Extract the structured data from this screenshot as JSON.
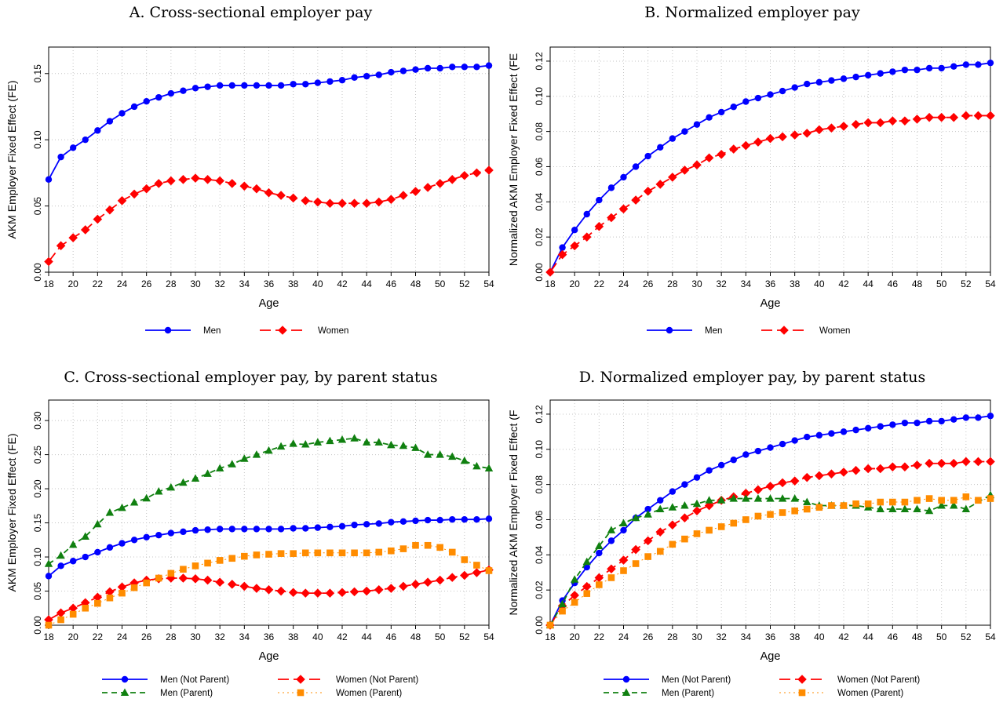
{
  "colors": {
    "men": "#0000ff",
    "women": "#ff0000",
    "men_parent": "#108010",
    "women_parent": "#ff8c00"
  },
  "chart_data": [
    {
      "type": "line",
      "title": "A. Cross-sectional employer pay",
      "xlabel": "Age",
      "ylabel": "AKM Employer Fixed Effect (FE)",
      "xlim": [
        18,
        54
      ],
      "ylim": [
        0,
        0.17
      ],
      "yticks": [
        0.0,
        0.05,
        0.1,
        0.15
      ],
      "ytick_labels": [
        "0.00",
        "0.05",
        "0.10",
        "0.15"
      ],
      "grid": true,
      "legend": "bottom",
      "x": [
        18,
        19,
        20,
        21,
        22,
        23,
        24,
        25,
        26,
        27,
        28,
        29,
        30,
        31,
        32,
        33,
        34,
        35,
        36,
        37,
        38,
        39,
        40,
        41,
        42,
        43,
        44,
        45,
        46,
        47,
        48,
        49,
        50,
        51,
        52,
        53,
        54
      ],
      "series": [
        {
          "name": "Men",
          "color_key": "men",
          "marker": "circle",
          "dash": "solid",
          "values": [
            0.07,
            0.087,
            0.094,
            0.1,
            0.107,
            0.114,
            0.12,
            0.125,
            0.129,
            0.132,
            0.135,
            0.137,
            0.139,
            0.14,
            0.141,
            0.141,
            0.141,
            0.141,
            0.141,
            0.141,
            0.142,
            0.142,
            0.143,
            0.144,
            0.145,
            0.147,
            0.148,
            0.149,
            0.151,
            0.152,
            0.153,
            0.154,
            0.154,
            0.155,
            0.155,
            0.155,
            0.156
          ]
        },
        {
          "name": "Women",
          "color_key": "women",
          "marker": "diamond",
          "dash": "long",
          "values": [
            0.008,
            0.02,
            0.026,
            0.032,
            0.04,
            0.047,
            0.054,
            0.059,
            0.063,
            0.067,
            0.069,
            0.07,
            0.071,
            0.07,
            0.069,
            0.067,
            0.065,
            0.063,
            0.06,
            0.058,
            0.056,
            0.054,
            0.053,
            0.052,
            0.052,
            0.052,
            0.052,
            0.053,
            0.055,
            0.058,
            0.061,
            0.064,
            0.067,
            0.07,
            0.073,
            0.075,
            0.077
          ]
        }
      ]
    },
    {
      "type": "line",
      "title": "B. Normalized employer pay",
      "xlabel": "Age",
      "ylabel": "Normalized AKM Employer Fixed Effect (FE",
      "xlim": [
        18,
        54
      ],
      "ylim": [
        0,
        0.128
      ],
      "yticks": [
        0.0,
        0.02,
        0.04,
        0.06,
        0.08,
        0.1,
        0.12
      ],
      "ytick_labels": [
        "0.00",
        "0.02",
        "0.04",
        "0.06",
        "0.08",
        "0.10",
        "0.12"
      ],
      "grid": true,
      "legend": "bottom",
      "x": [
        18,
        19,
        20,
        21,
        22,
        23,
        24,
        25,
        26,
        27,
        28,
        29,
        30,
        31,
        32,
        33,
        34,
        35,
        36,
        37,
        38,
        39,
        40,
        41,
        42,
        43,
        44,
        45,
        46,
        47,
        48,
        49,
        50,
        51,
        52,
        53,
        54
      ],
      "series": [
        {
          "name": "Men",
          "color_key": "men",
          "marker": "circle",
          "dash": "solid",
          "values": [
            0.0,
            0.014,
            0.024,
            0.033,
            0.041,
            0.048,
            0.054,
            0.06,
            0.066,
            0.071,
            0.076,
            0.08,
            0.084,
            0.088,
            0.091,
            0.094,
            0.097,
            0.099,
            0.101,
            0.103,
            0.105,
            0.107,
            0.108,
            0.109,
            0.11,
            0.111,
            0.112,
            0.113,
            0.114,
            0.115,
            0.115,
            0.116,
            0.116,
            0.117,
            0.118,
            0.118,
            0.119
          ]
        },
        {
          "name": "Women",
          "color_key": "women",
          "marker": "diamond",
          "dash": "long",
          "values": [
            0.0,
            0.01,
            0.015,
            0.02,
            0.026,
            0.031,
            0.036,
            0.041,
            0.046,
            0.05,
            0.054,
            0.058,
            0.061,
            0.065,
            0.067,
            0.07,
            0.072,
            0.074,
            0.076,
            0.077,
            0.078,
            0.079,
            0.081,
            0.082,
            0.083,
            0.084,
            0.085,
            0.085,
            0.086,
            0.086,
            0.087,
            0.088,
            0.088,
            0.088,
            0.089,
            0.089,
            0.089
          ]
        }
      ]
    },
    {
      "type": "line",
      "title": "C. Cross-sectional employer pay, by parent status",
      "xlabel": "Age",
      "ylabel": "AKM Employer Fixed Effect (FE)",
      "xlim": [
        18,
        54
      ],
      "ylim": [
        0,
        0.33
      ],
      "yticks": [
        0.0,
        0.05,
        0.1,
        0.15,
        0.2,
        0.25,
        0.3
      ],
      "ytick_labels": [
        "0.00",
        "0.05",
        "0.10",
        "0.15",
        "0.20",
        "0.25",
        "0.30"
      ],
      "grid": true,
      "legend": "bottom",
      "x": [
        18,
        19,
        20,
        21,
        22,
        23,
        24,
        25,
        26,
        27,
        28,
        29,
        30,
        31,
        32,
        33,
        34,
        35,
        36,
        37,
        38,
        39,
        40,
        41,
        42,
        43,
        44,
        45,
        46,
        47,
        48,
        49,
        50,
        51,
        52,
        53,
        54
      ],
      "series": [
        {
          "name": "Men (Not Parent)",
          "color_key": "men",
          "marker": "circle",
          "dash": "solid",
          "values": [
            0.072,
            0.087,
            0.094,
            0.1,
            0.107,
            0.114,
            0.12,
            0.125,
            0.129,
            0.132,
            0.135,
            0.137,
            0.139,
            0.14,
            0.141,
            0.141,
            0.141,
            0.141,
            0.141,
            0.141,
            0.142,
            0.142,
            0.143,
            0.144,
            0.145,
            0.147,
            0.148,
            0.149,
            0.151,
            0.152,
            0.153,
            0.154,
            0.154,
            0.155,
            0.155,
            0.155,
            0.156
          ]
        },
        {
          "name": "Women (Not Parent)",
          "color_key": "women",
          "marker": "diamond",
          "dash": "long",
          "values": [
            0.008,
            0.018,
            0.025,
            0.033,
            0.041,
            0.049,
            0.056,
            0.062,
            0.066,
            0.068,
            0.069,
            0.069,
            0.068,
            0.066,
            0.063,
            0.06,
            0.057,
            0.054,
            0.052,
            0.05,
            0.048,
            0.047,
            0.047,
            0.047,
            0.048,
            0.049,
            0.05,
            0.052,
            0.054,
            0.057,
            0.06,
            0.063,
            0.066,
            0.07,
            0.073,
            0.077,
            0.081
          ]
        },
        {
          "name": "Men (Parent)",
          "color_key": "men_parent",
          "marker": "triangle",
          "dash": "dash",
          "values": [
            0.09,
            0.102,
            0.118,
            0.13,
            0.148,
            0.165,
            0.172,
            0.18,
            0.186,
            0.196,
            0.202,
            0.209,
            0.215,
            0.222,
            0.23,
            0.236,
            0.244,
            0.25,
            0.256,
            0.262,
            0.266,
            0.265,
            0.268,
            0.27,
            0.272,
            0.274,
            0.268,
            0.268,
            0.264,
            0.263,
            0.26,
            0.25,
            0.25,
            0.247,
            0.241,
            0.233,
            0.23
          ]
        },
        {
          "name": "Women (Parent)",
          "color_key": "women_parent",
          "marker": "square",
          "dash": "dot",
          "values": [
            0.0,
            0.008,
            0.016,
            0.025,
            0.032,
            0.04,
            0.047,
            0.055,
            0.062,
            0.069,
            0.076,
            0.082,
            0.087,
            0.091,
            0.095,
            0.098,
            0.101,
            0.103,
            0.104,
            0.105,
            0.105,
            0.106,
            0.106,
            0.106,
            0.106,
            0.106,
            0.106,
            0.107,
            0.109,
            0.112,
            0.117,
            0.117,
            0.114,
            0.107,
            0.096,
            0.088,
            0.08
          ]
        }
      ]
    },
    {
      "type": "line",
      "title": "D. Normalized employer pay, by parent status",
      "xlabel": "Age",
      "ylabel": "Normalized AKM Employer Fixed Effect (F",
      "xlim": [
        18,
        54
      ],
      "ylim": [
        0,
        0.128
      ],
      "yticks": [
        0.0,
        0.02,
        0.04,
        0.06,
        0.08,
        0.1,
        0.12
      ],
      "ytick_labels": [
        "0.00",
        "0.02",
        "0.04",
        "0.06",
        "0.08",
        "0.10",
        "0.12"
      ],
      "grid": true,
      "legend": "bottom",
      "x": [
        18,
        19,
        20,
        21,
        22,
        23,
        24,
        25,
        26,
        27,
        28,
        29,
        30,
        31,
        32,
        33,
        34,
        35,
        36,
        37,
        38,
        39,
        40,
        41,
        42,
        43,
        44,
        45,
        46,
        47,
        48,
        49,
        50,
        51,
        52,
        53,
        54
      ],
      "series": [
        {
          "name": "Men (Not Parent)",
          "color_key": "men",
          "marker": "circle",
          "dash": "solid",
          "values": [
            0.0,
            0.014,
            0.024,
            0.033,
            0.041,
            0.048,
            0.054,
            0.061,
            0.066,
            0.071,
            0.076,
            0.08,
            0.084,
            0.088,
            0.091,
            0.094,
            0.097,
            0.099,
            0.101,
            0.103,
            0.105,
            0.107,
            0.108,
            0.109,
            0.11,
            0.111,
            0.112,
            0.113,
            0.114,
            0.115,
            0.115,
            0.116,
            0.116,
            0.117,
            0.118,
            0.118,
            0.119
          ]
        },
        {
          "name": "Women (Not Parent)",
          "color_key": "women",
          "marker": "diamond",
          "dash": "long",
          "values": [
            0.0,
            0.011,
            0.017,
            0.022,
            0.027,
            0.032,
            0.037,
            0.043,
            0.048,
            0.053,
            0.057,
            0.061,
            0.065,
            0.068,
            0.071,
            0.073,
            0.075,
            0.077,
            0.079,
            0.081,
            0.082,
            0.084,
            0.085,
            0.086,
            0.087,
            0.088,
            0.089,
            0.089,
            0.09,
            0.09,
            0.091,
            0.092,
            0.092,
            0.092,
            0.093,
            0.093,
            0.093
          ]
        },
        {
          "name": "Men (Parent)",
          "color_key": "men_parent",
          "marker": "triangle",
          "dash": "dash",
          "values": [
            0.0,
            0.012,
            0.026,
            0.036,
            0.045,
            0.054,
            0.058,
            0.061,
            0.063,
            0.066,
            0.067,
            0.068,
            0.069,
            0.071,
            0.071,
            0.072,
            0.072,
            0.072,
            0.072,
            0.072,
            0.072,
            0.07,
            0.068,
            0.068,
            0.068,
            0.068,
            0.067,
            0.066,
            0.066,
            0.066,
            0.066,
            0.065,
            0.068,
            0.068,
            0.066,
            null,
            0.074
          ]
        },
        {
          "name": "Women (Parent)",
          "color_key": "women_parent",
          "marker": "square",
          "dash": "dot",
          "values": [
            0.0,
            0.008,
            0.013,
            0.018,
            0.023,
            0.027,
            0.031,
            0.035,
            0.039,
            0.042,
            0.046,
            0.049,
            0.052,
            0.054,
            0.056,
            0.058,
            0.06,
            0.062,
            0.063,
            0.064,
            0.065,
            0.066,
            0.067,
            0.068,
            0.068,
            0.069,
            0.069,
            0.07,
            0.07,
            0.07,
            0.071,
            0.072,
            0.071,
            0.071,
            0.073,
            0.071,
            0.072
          ]
        }
      ]
    }
  ]
}
